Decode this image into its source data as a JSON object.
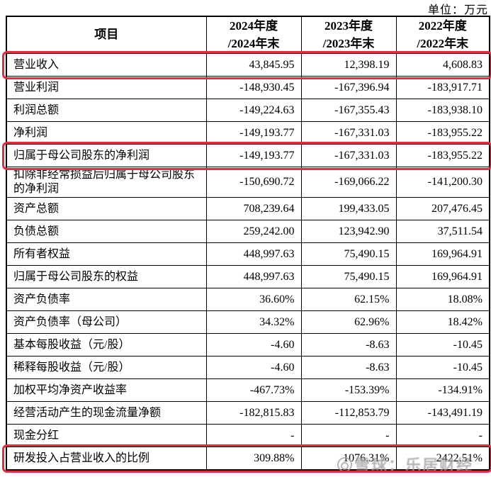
{
  "unit_label": "单位：万元",
  "colors": {
    "highlight_box": "#e72b3e",
    "table_border": "#000000",
    "watermark_gray": "#a3a3a3",
    "background": "#ffffff"
  },
  "table": {
    "header": {
      "item": "项目",
      "periods": [
        {
          "line1": "2024年度",
          "line2": "/2024年末"
        },
        {
          "line1": "2023年度",
          "line2": "/2023年末"
        },
        {
          "line1": "2022年度",
          "line2": "/2022年末"
        }
      ]
    },
    "rows": [
      {
        "label": "营业收入",
        "values": [
          "43,845.95",
          "12,398.19",
          "4,608.83"
        ],
        "highlighted": true
      },
      {
        "label": "营业利润",
        "values": [
          "-148,930.45",
          "-167,396.94",
          "-183,917.71"
        ],
        "highlighted": false
      },
      {
        "label": "利润总额",
        "values": [
          "-149,224.63",
          "-167,355.43",
          "-183,938.10"
        ],
        "highlighted": false
      },
      {
        "label": "净利润",
        "values": [
          "-149,193.77",
          "-167,331.03",
          "-183,955.22"
        ],
        "highlighted": false
      },
      {
        "label": "归属于母公司股东的净利润",
        "values": [
          "-149,193.77",
          "-167,331.03",
          "-183,955.22"
        ],
        "highlighted": true
      },
      {
        "label": "扣除非经常损益后归属于母公司股东的净利润",
        "values": [
          "-150,690.72",
          "-169,066.22",
          "-141,200.30"
        ],
        "highlighted": false
      },
      {
        "label": "资产总额",
        "values": [
          "708,239.64",
          "199,433.05",
          "207,476.45"
        ],
        "highlighted": false
      },
      {
        "label": "负债总额",
        "values": [
          "259,242.00",
          "123,942.90",
          "37,511.54"
        ],
        "highlighted": false
      },
      {
        "label": "所有者权益",
        "values": [
          "448,997.63",
          "75,490.15",
          "169,964.91"
        ],
        "highlighted": false
      },
      {
        "label": "归属于母公司股东的权益",
        "values": [
          "448,997.63",
          "75,490.15",
          "169,964.91"
        ],
        "highlighted": false
      },
      {
        "label": "资产负债率",
        "values": [
          "36.60%",
          "62.15%",
          "18.08%"
        ],
        "highlighted": false
      },
      {
        "label": "资产负债率（母公司）",
        "values": [
          "34.32%",
          "62.96%",
          "18.42%"
        ],
        "highlighted": false
      },
      {
        "label": "基本每股收益（元/股）",
        "values": [
          "-4.60",
          "-8.63",
          "-10.45"
        ],
        "highlighted": false
      },
      {
        "label": "稀释每股收益（元/股）",
        "values": [
          "-4.60",
          "-8.63",
          "-10.45"
        ],
        "highlighted": false
      },
      {
        "label": "加权平均净资产收益率",
        "values": [
          "-467.73%",
          "-153.39%",
          "-134.91%"
        ],
        "highlighted": false
      },
      {
        "label": "经营活动产生的现金流量净额",
        "values": [
          "-182,815.83",
          "-112,853.79",
          "-143,491.19"
        ],
        "highlighted": false
      },
      {
        "label": "现金分红",
        "values": [
          "-",
          "-",
          "-"
        ],
        "highlighted": false
      },
      {
        "label": "研发投入占营业收入的比例",
        "values": [
          "309.88%",
          "1076.31%",
          "2422.51%"
        ],
        "highlighted": true
      }
    ]
  },
  "watermark": {
    "text": "雪球：乐居财经",
    "logo": "snowball-icon"
  }
}
